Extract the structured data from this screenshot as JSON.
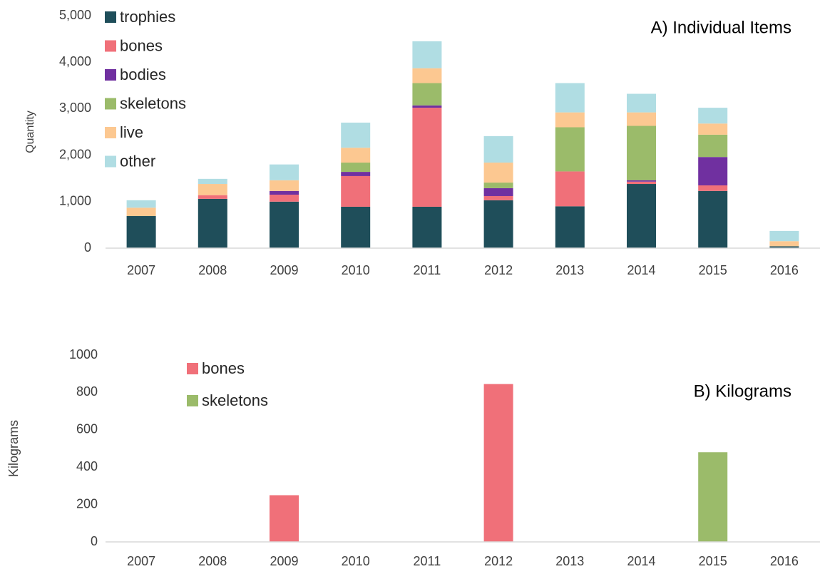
{
  "chart_data": [
    {
      "type": "bar",
      "stacked": true,
      "title": "A) Individual Items",
      "y_label": "Quantity",
      "categories": [
        "2007",
        "2008",
        "2009",
        "2010",
        "2011",
        "2012",
        "2013",
        "2014",
        "2015",
        "2016"
      ],
      "series": [
        {
          "name": "trophies",
          "color": "#1f4e5a",
          "values": [
            690,
            1060,
            1000,
            890,
            890,
            1030,
            900,
            1380,
            1230,
            40
          ]
        },
        {
          "name": "bones",
          "color": "#f07079",
          "values": [
            0,
            80,
            150,
            660,
            2130,
            90,
            750,
            50,
            120,
            0
          ]
        },
        {
          "name": "bodies",
          "color": "#7030a0",
          "values": [
            0,
            0,
            80,
            90,
            50,
            170,
            0,
            30,
            610,
            0
          ]
        },
        {
          "name": "skeletons",
          "color": "#9bbb6a",
          "values": [
            0,
            0,
            0,
            200,
            480,
            120,
            950,
            1170,
            480,
            0
          ]
        },
        {
          "name": "live",
          "color": "#fcc891",
          "values": [
            180,
            240,
            230,
            320,
            320,
            430,
            320,
            290,
            240,
            110
          ]
        },
        {
          "name": "other",
          "color": "#b0dde3",
          "values": [
            160,
            110,
            340,
            540,
            580,
            570,
            630,
            400,
            340,
            220
          ]
        }
      ],
      "ylim": [
        0,
        5000
      ],
      "yticks": [
        0,
        {
          "value": 1000,
          "label": "1,000"
        },
        {
          "value": 2000,
          "label": "2,000"
        },
        {
          "value": 3000,
          "label": "3,000"
        },
        {
          "value": 4000,
          "label": "4,000"
        },
        {
          "value": 5000,
          "label": "5,000"
        }
      ],
      "grid": false,
      "legend": "upper left"
    },
    {
      "type": "bar",
      "stacked": true,
      "title": "B) Kilograms",
      "y_label": "Kilograms",
      "categories": [
        "2007",
        "2008",
        "2009",
        "2010",
        "2011",
        "2012",
        "2013",
        "2014",
        "2015",
        "2016"
      ],
      "series": [
        {
          "name": "bones",
          "color": "#f07079",
          "values": [
            0,
            0,
            250,
            0,
            0,
            845,
            0,
            0,
            0,
            0
          ]
        },
        {
          "name": "skeletons",
          "color": "#9bbb6a",
          "values": [
            0,
            0,
            0,
            0,
            0,
            0,
            0,
            0,
            480,
            0
          ]
        }
      ],
      "ylim": [
        0,
        1000
      ],
      "yticks": [
        0,
        200,
        400,
        600,
        800,
        1000
      ],
      "grid": false,
      "legend": "upper left"
    }
  ]
}
